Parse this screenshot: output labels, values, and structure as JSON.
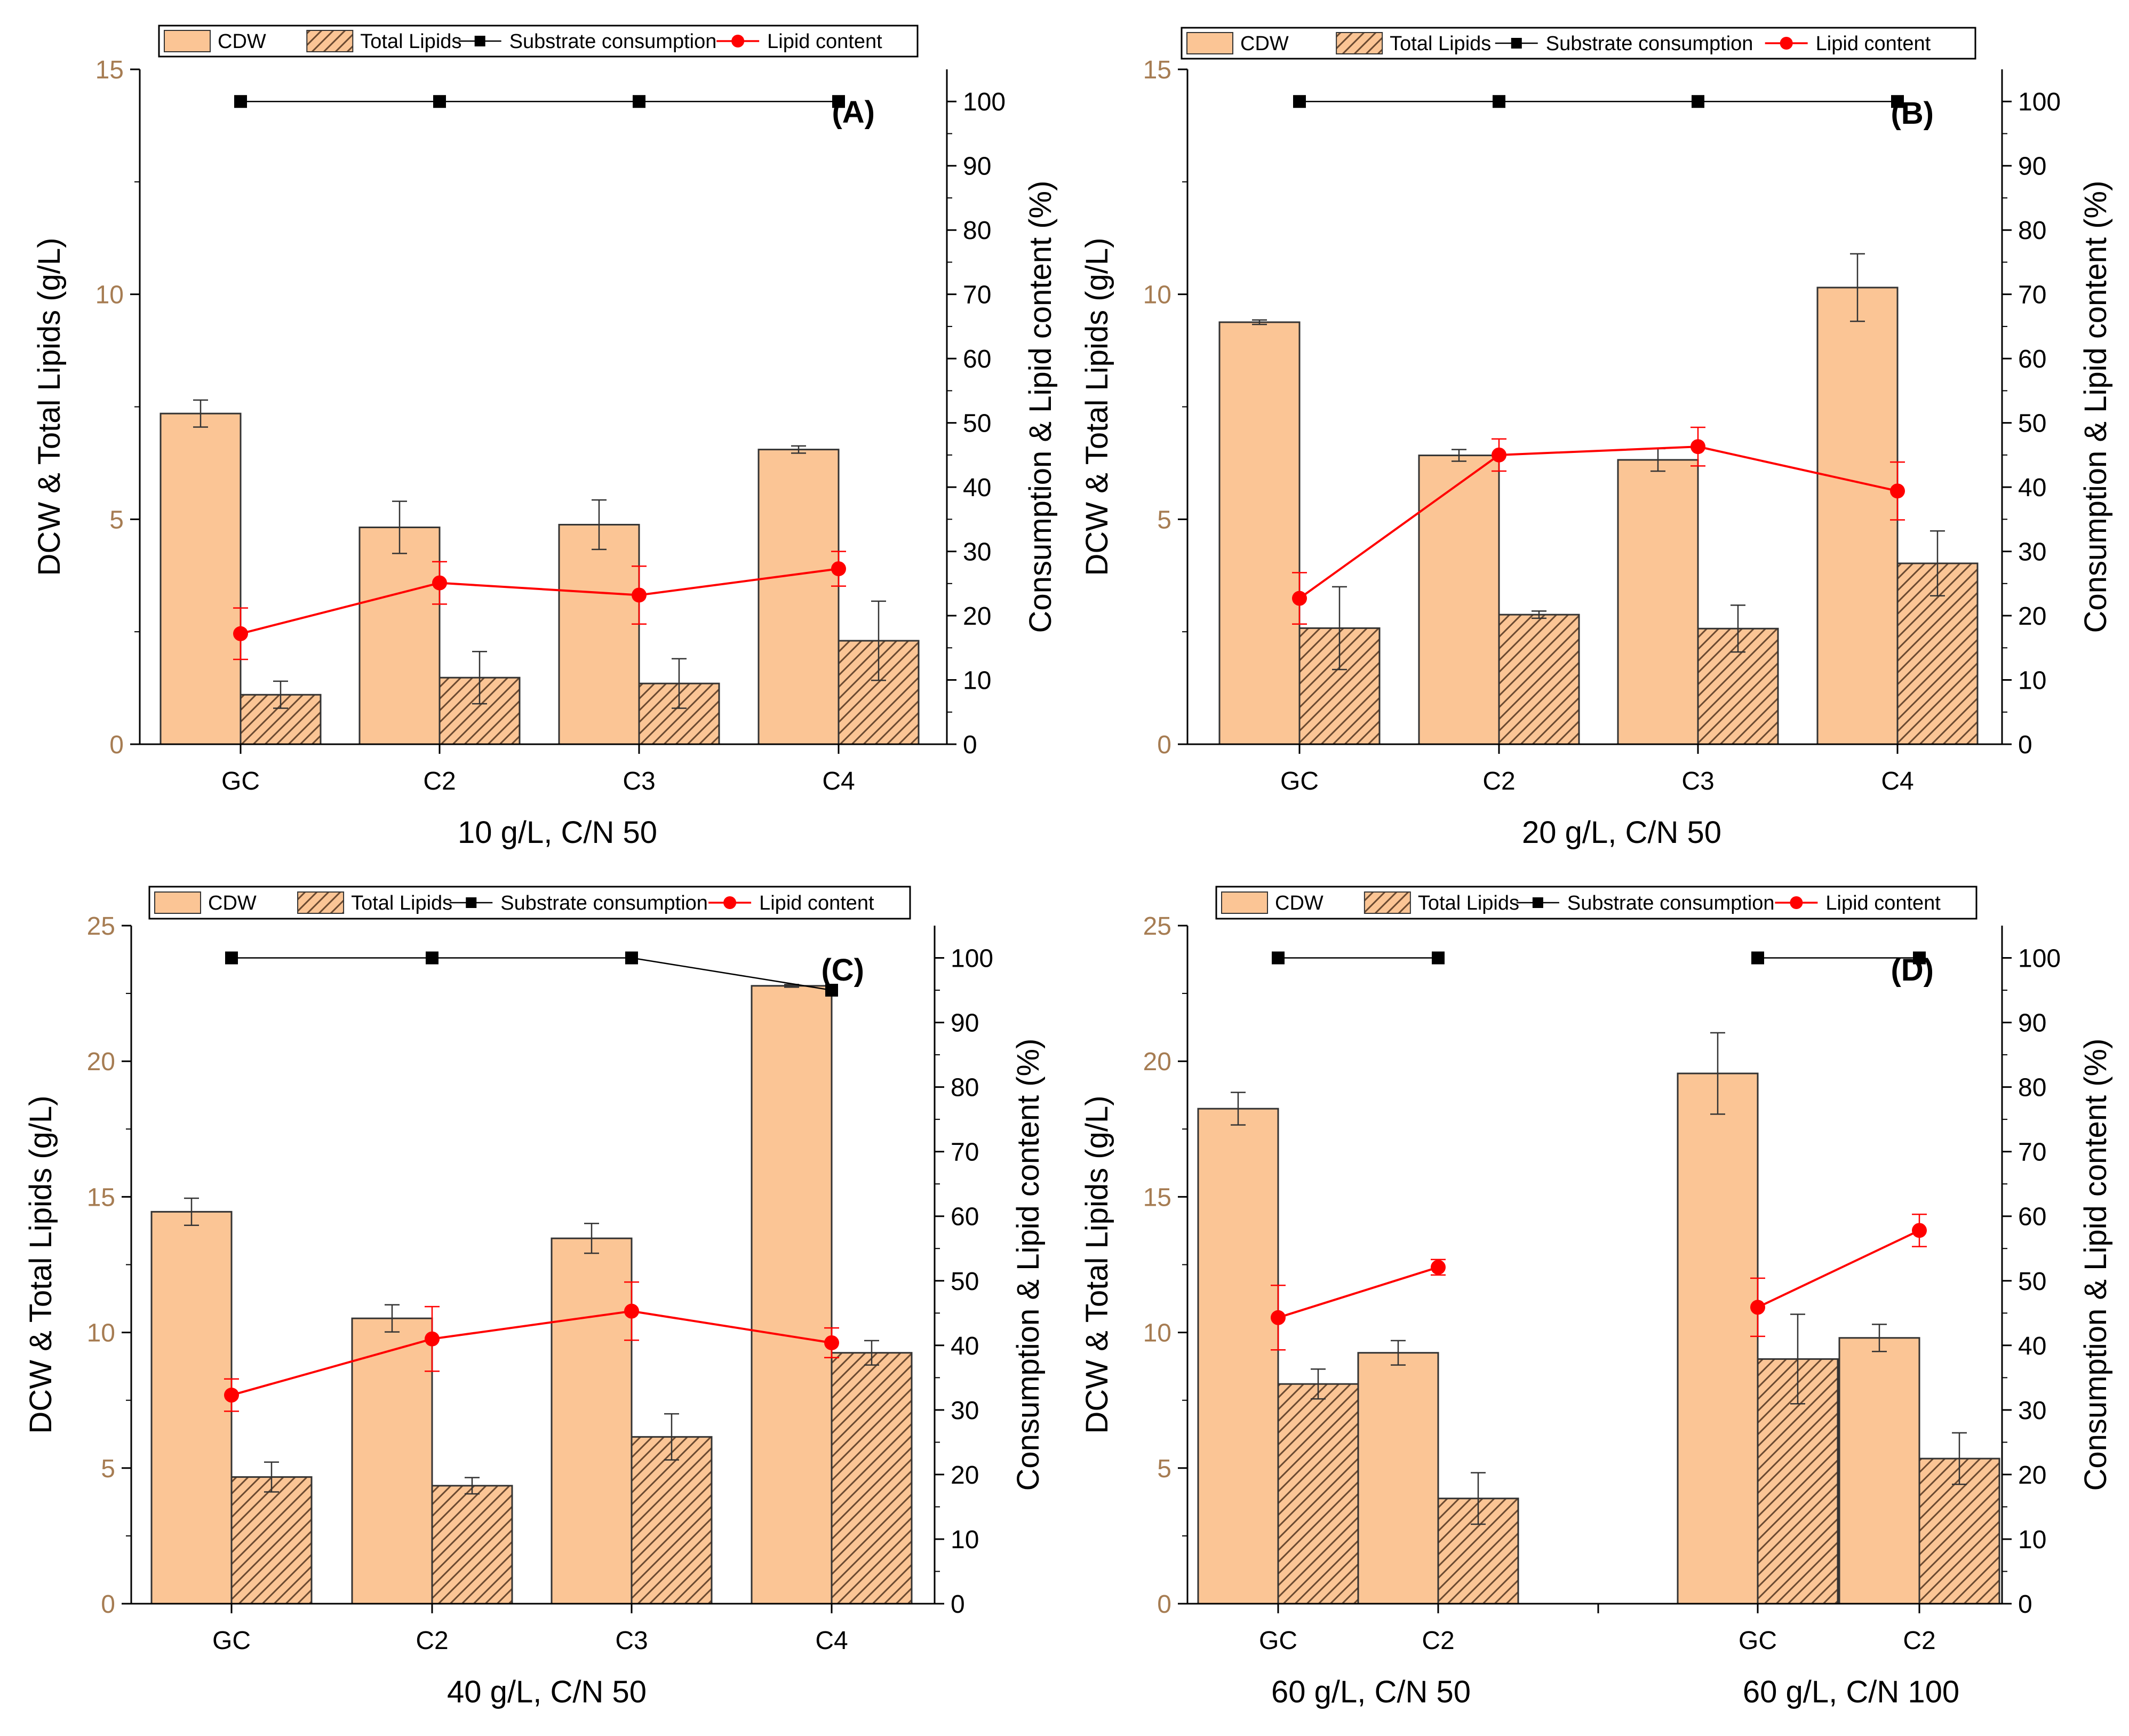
{
  "colors": {
    "cdw_fill": "#FBC595",
    "lipid_fill": "#FBC595",
    "hatch": "#6b4a30",
    "outline": "#333333",
    "consumption_line": "#000000",
    "lipid_content_line": "#ff0000",
    "left_axis_text": "#a67c52",
    "right_axis_text": "#000000"
  },
  "legend_labels": {
    "cdw": "CDW",
    "total_lipids": "Total Lipids",
    "substrate_consumption": "Substrate consumption",
    "lipid_content": "Lipid content"
  },
  "chart_data": [
    {
      "type": "bar",
      "panel": "(A)",
      "ylabel_left": "DCW & Total Lipids (g/L)",
      "ylabel_right": "Consumption & Lipid content (%)",
      "ylim_left": [
        0,
        15
      ],
      "yticks_left": [
        0,
        5,
        10,
        15
      ],
      "ylim_right": [
        0,
        105
      ],
      "yticks_right": [
        0,
        10,
        20,
        30,
        40,
        50,
        60,
        70,
        80,
        90,
        100
      ],
      "categories": [
        "GC",
        "C2",
        "C3",
        "C4"
      ],
      "group_labels": [
        "10 g/L, C/N 50"
      ],
      "legend": "top",
      "series": [
        {
          "name": "CDW",
          "kind": "bar",
          "axis": "left",
          "values": [
            7.35,
            4.82,
            4.88,
            6.55
          ],
          "errors": [
            0.3,
            0.58,
            0.55,
            0.08
          ]
        },
        {
          "name": "Total Lipids",
          "kind": "bar",
          "axis": "left",
          "values": [
            1.1,
            1.48,
            1.35,
            2.3
          ],
          "errors": [
            0.3,
            0.58,
            0.55,
            0.88
          ]
        },
        {
          "name": "Substrate consumption",
          "kind": "line",
          "axis": "right",
          "values": [
            100,
            100,
            100,
            100
          ],
          "segments": [
            [
              0,
              1,
              2,
              3
            ]
          ]
        },
        {
          "name": "Lipid content",
          "kind": "line",
          "axis": "right",
          "values": [
            17.2,
            25.1,
            23.2,
            27.3
          ],
          "errors": [
            4.0,
            3.3,
            4.5,
            2.7
          ],
          "segments": [
            [
              0,
              1,
              2,
              3
            ]
          ]
        }
      ]
    },
    {
      "type": "bar",
      "panel": "(B)",
      "ylabel_left": "DCW & Total Lipids (g/L)",
      "ylabel_right": "Consumption & Lipid content (%)",
      "ylim_left": [
        0,
        15
      ],
      "yticks_left": [
        0,
        5,
        10,
        15
      ],
      "ylim_right": [
        0,
        105
      ],
      "yticks_right": [
        0,
        10,
        20,
        30,
        40,
        50,
        60,
        70,
        80,
        90,
        100
      ],
      "categories": [
        "GC",
        "C2",
        "C3",
        "C4"
      ],
      "group_labels": [
        "20 g/L, C/N 50"
      ],
      "legend": "top",
      "series": [
        {
          "name": "CDW",
          "kind": "bar",
          "axis": "left",
          "values": [
            9.38,
            6.42,
            6.32,
            10.15
          ],
          "errors": [
            0.05,
            0.13,
            0.25,
            0.75
          ]
        },
        {
          "name": "Total Lipids",
          "kind": "bar",
          "axis": "left",
          "values": [
            2.58,
            2.88,
            2.57,
            4.02
          ],
          "errors": [
            0.92,
            0.08,
            0.52,
            0.72
          ]
        },
        {
          "name": "Substrate consumption",
          "kind": "line",
          "axis": "right",
          "values": [
            100,
            100,
            100,
            100
          ],
          "segments": [
            [
              0,
              1,
              2,
              3
            ]
          ]
        },
        {
          "name": "Lipid content",
          "kind": "line",
          "axis": "right",
          "values": [
            22.7,
            45.0,
            46.3,
            39.4
          ],
          "errors": [
            4.0,
            2.5,
            3.0,
            4.5
          ],
          "segments": [
            [
              0,
              1,
              2,
              3
            ]
          ]
        }
      ]
    },
    {
      "type": "bar",
      "panel": "(C)",
      "ylabel_left": "DCW & Total Lipids (g/L)",
      "ylabel_right": "Consumption & Lipid content (%)",
      "ylim_left": [
        0,
        25
      ],
      "yticks_left": [
        0,
        5,
        10,
        15,
        20,
        25
      ],
      "ylim_right": [
        0,
        105
      ],
      "yticks_right": [
        0,
        10,
        20,
        30,
        40,
        50,
        60,
        70,
        80,
        90,
        100
      ],
      "categories": [
        "GC",
        "C2",
        "C3",
        "C4"
      ],
      "group_labels": [
        "40 g/L, C/N 50"
      ],
      "legend": "top",
      "series": [
        {
          "name": "CDW",
          "kind": "bar",
          "axis": "left",
          "values": [
            14.45,
            10.52,
            13.47,
            22.78
          ],
          "errors": [
            0.5,
            0.5,
            0.55,
            0.05
          ]
        },
        {
          "name": "Total Lipids",
          "kind": "bar",
          "axis": "left",
          "values": [
            4.67,
            4.35,
            6.15,
            9.25
          ],
          "errors": [
            0.55,
            0.3,
            0.85,
            0.45
          ]
        },
        {
          "name": "Substrate consumption",
          "kind": "line",
          "axis": "right",
          "values": [
            100,
            100,
            100,
            95
          ],
          "segments": [
            [
              0,
              1,
              2,
              3
            ]
          ]
        },
        {
          "name": "Lipid content",
          "kind": "line",
          "axis": "right",
          "values": [
            32.3,
            41.0,
            45.3,
            40.4
          ],
          "errors": [
            2.5,
            5.0,
            4.5,
            2.3
          ],
          "segments": [
            [
              0,
              1,
              2,
              3
            ]
          ]
        }
      ]
    },
    {
      "type": "bar",
      "panel": "(D)",
      "ylabel_left": "DCW & Total Lipids (g/L)",
      "ylabel_right": "Consumption & Lipid content (%)",
      "ylim_left": [
        0,
        25
      ],
      "yticks_left": [
        0,
        5,
        10,
        15,
        20,
        25
      ],
      "ylim_right": [
        0,
        105
      ],
      "yticks_right": [
        0,
        10,
        20,
        30,
        40,
        50,
        60,
        70,
        80,
        90,
        100
      ],
      "categories": [
        "GC",
        "C2",
        "GC",
        "C2"
      ],
      "group_labels": [
        "60 g/L, C/N 50",
        "60 g/L, C/N 100"
      ],
      "legend": "top",
      "series": [
        {
          "name": "CDW",
          "kind": "bar",
          "axis": "left",
          "values": [
            18.25,
            9.25,
            19.55,
            9.8
          ],
          "errors": [
            0.6,
            0.45,
            1.5,
            0.5
          ]
        },
        {
          "name": "Total Lipids",
          "kind": "bar",
          "axis": "left",
          "values": [
            8.1,
            3.88,
            9.02,
            5.35
          ],
          "errors": [
            0.55,
            0.95,
            1.65,
            0.95
          ]
        },
        {
          "name": "Substrate consumption",
          "kind": "line",
          "axis": "right",
          "values": [
            100,
            100,
            100,
            100
          ],
          "segments": [
            [
              0,
              1
            ],
            [
              2,
              3
            ]
          ]
        },
        {
          "name": "Lipid content",
          "kind": "line",
          "axis": "right",
          "values": [
            44.3,
            52.1,
            45.9,
            57.8
          ],
          "errors": [
            5.0,
            1.2,
            4.5,
            2.5
          ],
          "segments": [
            [
              0,
              1
            ],
            [
              2,
              3
            ]
          ]
        }
      ]
    }
  ]
}
